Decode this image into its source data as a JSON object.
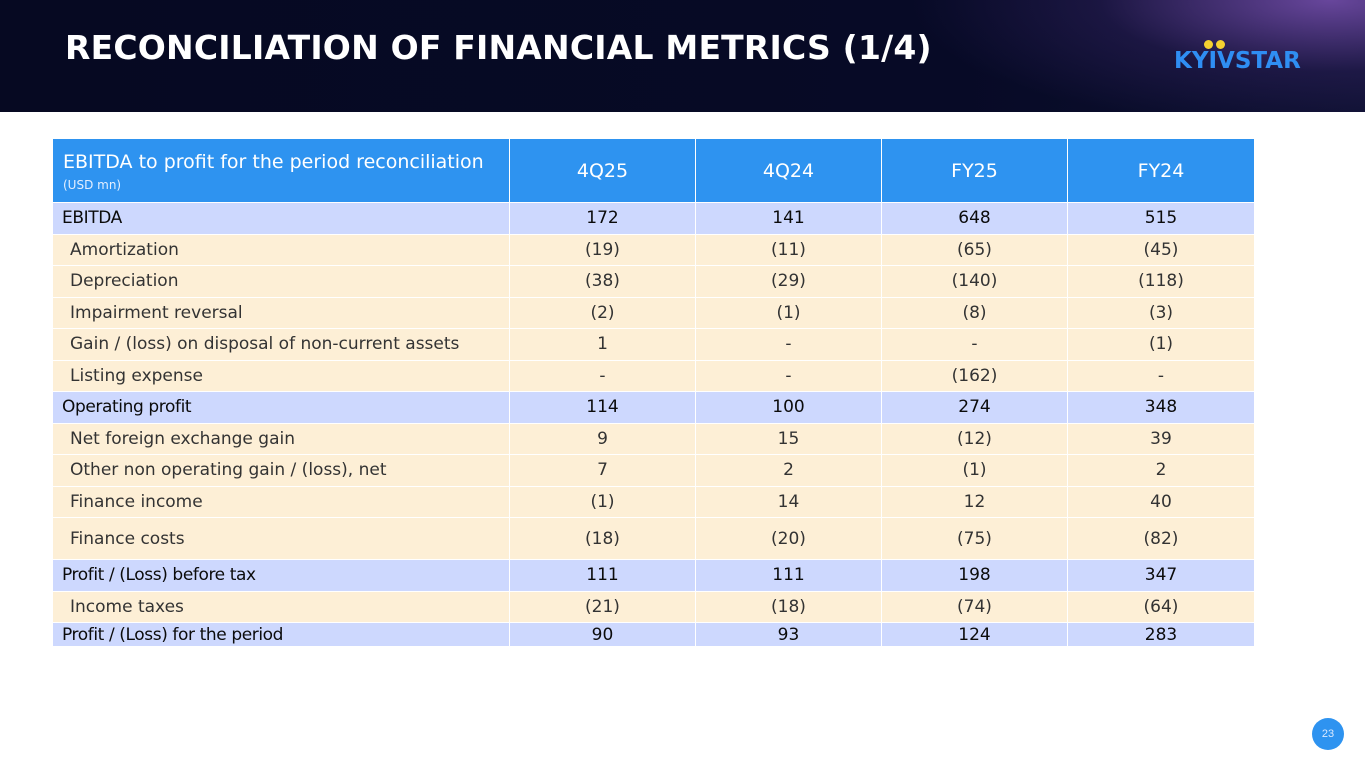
{
  "header": {
    "title": "RECONCILIATION OF FINANCIAL METRICS (1/4)",
    "logo_text": "KYIVSTAR"
  },
  "colors": {
    "header_bg": "#060922",
    "accent_blue": "#2e93f0",
    "logo_yellow": "#f5d130",
    "total_row_bg": "#cdd8fe",
    "detail_row_bg": "#fdefd6"
  },
  "table": {
    "title": "EBITDA to profit for the period reconciliation",
    "unit": "(USD mn)",
    "columns": [
      "4Q25",
      "4Q24",
      "FY25",
      "FY24"
    ],
    "rows": [
      {
        "label": "EBITDA",
        "values": [
          "172",
          "141",
          "648",
          "515"
        ]
      },
      {
        "label": "Amortization",
        "values": [
          "(19)",
          "(11)",
          "(65)",
          "(45)"
        ]
      },
      {
        "label": "Depreciation",
        "values": [
          "(38)",
          "(29)",
          "(140)",
          "(118)"
        ]
      },
      {
        "label": "Impairment reversal",
        "values": [
          "(2)",
          "(1)",
          "(8)",
          "(3)"
        ]
      },
      {
        "label": "Gain / (loss) on disposal of non-current assets",
        "values": [
          "1",
          "-",
          "-",
          "(1)"
        ]
      },
      {
        "label": "Listing expense",
        "values": [
          "-",
          "-",
          "(162)",
          "-"
        ]
      },
      {
        "label": "Operating profit",
        "values": [
          "114",
          "100",
          "274",
          "348"
        ]
      },
      {
        "label": "Net foreign exchange gain",
        "values": [
          "9",
          "15",
          "(12)",
          "39"
        ]
      },
      {
        "label": "Other non operating gain / (loss), net",
        "values": [
          "7",
          "2",
          "(1)",
          "2"
        ]
      },
      {
        "label": "Finance income",
        "values": [
          "(1)",
          "14",
          "12",
          "40"
        ]
      },
      {
        "label": "Finance costs",
        "values": [
          "(18)",
          "(20)",
          "(75)",
          "(82)"
        ]
      },
      {
        "label": "Profit / (Loss) before tax",
        "values": [
          "111",
          "111",
          "198",
          "347"
        ]
      },
      {
        "label": "Income taxes",
        "values": [
          "(21)",
          "(18)",
          "(74)",
          "(64)"
        ]
      },
      {
        "label": "Profit / (Loss) for the period",
        "values": [
          "90",
          "93",
          "124",
          "283"
        ]
      }
    ]
  },
  "footer": {
    "page_number": "23"
  }
}
